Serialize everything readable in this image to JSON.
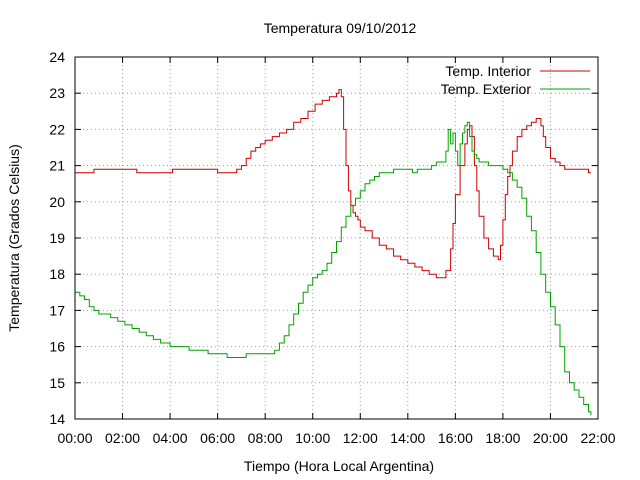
{
  "chart_data": {
    "type": "line",
    "title": "Temperatura 09/10/2012",
    "xlabel": "Tiempo (Hora Local Argentina)",
    "ylabel": "Temperatura (Grados Celsius)",
    "xlim": [
      0,
      22
    ],
    "ylim": [
      14,
      24
    ],
    "grid": true,
    "legend_position": "top-right",
    "x_ticks": [
      {
        "value": 0,
        "label": "00:00"
      },
      {
        "value": 2,
        "label": "02:00"
      },
      {
        "value": 4,
        "label": "04:00"
      },
      {
        "value": 6,
        "label": "06:00"
      },
      {
        "value": 8,
        "label": "08:00"
      },
      {
        "value": 10,
        "label": "10:00"
      },
      {
        "value": 12,
        "label": "12:00"
      },
      {
        "value": 14,
        "label": "14:00"
      },
      {
        "value": 16,
        "label": "16:00"
      },
      {
        "value": 18,
        "label": "18:00"
      },
      {
        "value": 20,
        "label": "20:00"
      },
      {
        "value": 22,
        "label": "22:00"
      }
    ],
    "y_ticks": [
      {
        "value": 14,
        "label": "14"
      },
      {
        "value": 15,
        "label": "15"
      },
      {
        "value": 16,
        "label": "16"
      },
      {
        "value": 17,
        "label": "17"
      },
      {
        "value": 18,
        "label": "18"
      },
      {
        "value": 19,
        "label": "19"
      },
      {
        "value": 20,
        "label": "20"
      },
      {
        "value": 21,
        "label": "21"
      },
      {
        "value": 22,
        "label": "22"
      },
      {
        "value": 23,
        "label": "23"
      },
      {
        "value": 24,
        "label": "24"
      }
    ],
    "series": [
      {
        "name": "Temp. Interior",
        "color": "#cc0000",
        "x": [
          0,
          0.75,
          0.8,
          1.5,
          2.5,
          2.6,
          2.7,
          3.2,
          4.0,
          4.1,
          4.2,
          5.0,
          5.8,
          6.0,
          6.2,
          6.6,
          6.8,
          7.0,
          7.2,
          7.4,
          7.6,
          7.8,
          8.0,
          8.3,
          8.6,
          8.9,
          9.2,
          9.5,
          9.8,
          10.1,
          10.4,
          10.7,
          11.0,
          11.1,
          11.2,
          11.3,
          11.4,
          11.5,
          11.6,
          11.7,
          11.8,
          11.9,
          12.0,
          12.2,
          12.5,
          12.8,
          13.1,
          13.4,
          13.7,
          14.0,
          14.3,
          14.6,
          14.9,
          15.2,
          15.5,
          15.6,
          15.7,
          15.8,
          15.9,
          16.0,
          16.2,
          16.4,
          16.5,
          16.6,
          16.7,
          16.8,
          16.9,
          17.0,
          17.2,
          17.4,
          17.6,
          17.8,
          17.9,
          18.0,
          18.1,
          18.2,
          18.3,
          18.4,
          18.6,
          18.8,
          19.0,
          19.2,
          19.4,
          19.5,
          19.6,
          19.7,
          19.8,
          20.0,
          20.2,
          20.4,
          20.6,
          20.8,
          21.0,
          21.2,
          21.4,
          21.6,
          21.7
        ],
        "values": [
          20.8,
          20.8,
          20.9,
          20.9,
          20.9,
          20.8,
          20.8,
          20.8,
          20.8,
          20.9,
          20.9,
          20.9,
          20.9,
          20.8,
          20.8,
          20.8,
          20.9,
          21.0,
          21.2,
          21.4,
          21.5,
          21.6,
          21.7,
          21.8,
          21.9,
          22.0,
          22.2,
          22.3,
          22.5,
          22.7,
          22.8,
          22.9,
          23.0,
          23.1,
          22.9,
          22.0,
          21.0,
          20.3,
          19.9,
          19.7,
          19.6,
          19.5,
          19.3,
          19.2,
          19.0,
          18.8,
          18.7,
          18.5,
          18.4,
          18.3,
          18.2,
          18.1,
          18.0,
          17.9,
          17.9,
          18.1,
          18.1,
          18.7,
          19.4,
          20.2,
          21.0,
          21.6,
          22.0,
          22.1,
          21.8,
          21.0,
          20.3,
          19.6,
          19.0,
          18.7,
          18.5,
          18.4,
          18.8,
          19.5,
          20.2,
          20.7,
          21.0,
          21.4,
          21.8,
          22.0,
          22.1,
          22.2,
          22.3,
          22.3,
          22.1,
          21.8,
          21.5,
          21.2,
          21.1,
          21.0,
          20.9,
          20.9,
          20.9,
          20.9,
          20.9,
          20.8,
          20.8
        ]
      },
      {
        "name": "Temp. Exterior",
        "color": "#00a000",
        "x": [
          0,
          0.2,
          0.4,
          0.6,
          0.8,
          1.0,
          1.2,
          1.5,
          1.8,
          2.1,
          2.4,
          2.7,
          3.0,
          3.3,
          3.6,
          4.0,
          4.4,
          4.8,
          5.2,
          5.6,
          6.0,
          6.4,
          6.8,
          7.2,
          7.6,
          8.0,
          8.2,
          8.4,
          8.6,
          8.8,
          9.0,
          9.2,
          9.4,
          9.6,
          9.8,
          10.0,
          10.2,
          10.4,
          10.6,
          10.8,
          11.0,
          11.2,
          11.4,
          11.6,
          11.8,
          12.0,
          12.2,
          12.4,
          12.6,
          12.8,
          13.0,
          13.2,
          13.4,
          13.6,
          13.8,
          14.0,
          14.2,
          14.4,
          14.6,
          14.8,
          15.0,
          15.2,
          15.4,
          15.6,
          15.7,
          15.8,
          15.9,
          16.0,
          16.1,
          16.2,
          16.3,
          16.4,
          16.5,
          16.6,
          16.7,
          16.8,
          16.9,
          17.0,
          17.2,
          17.4,
          17.6,
          17.8,
          18.0,
          18.2,
          18.4,
          18.6,
          18.8,
          19.0,
          19.2,
          19.4,
          19.6,
          19.8,
          20.0,
          20.2,
          20.4,
          20.6,
          20.8,
          21.0,
          21.2,
          21.4,
          21.6,
          21.7
        ],
        "values": [
          17.5,
          17.4,
          17.3,
          17.1,
          17.0,
          16.9,
          16.9,
          16.8,
          16.7,
          16.6,
          16.5,
          16.4,
          16.3,
          16.2,
          16.1,
          16.0,
          16.0,
          15.9,
          15.9,
          15.8,
          15.8,
          15.7,
          15.7,
          15.8,
          15.8,
          15.8,
          15.8,
          15.9,
          16.1,
          16.3,
          16.6,
          16.9,
          17.2,
          17.5,
          17.7,
          17.9,
          18.0,
          18.1,
          18.3,
          18.6,
          18.9,
          19.3,
          19.6,
          19.9,
          20.1,
          20.3,
          20.5,
          20.6,
          20.7,
          20.8,
          20.8,
          20.8,
          20.9,
          20.9,
          20.9,
          20.9,
          20.8,
          20.9,
          20.9,
          20.9,
          21.0,
          21.1,
          21.1,
          21.4,
          22.0,
          21.6,
          21.9,
          21.4,
          21.0,
          21.6,
          21.9,
          22.1,
          22.2,
          21.8,
          21.4,
          21.3,
          21.2,
          21.1,
          21.1,
          21.0,
          21.0,
          21.0,
          20.9,
          20.8,
          20.6,
          20.4,
          20.1,
          19.6,
          19.2,
          18.6,
          18.0,
          17.5,
          17.1,
          16.6,
          16.0,
          15.3,
          15.0,
          14.8,
          14.6,
          14.4,
          14.2,
          14.1
        ]
      }
    ]
  }
}
